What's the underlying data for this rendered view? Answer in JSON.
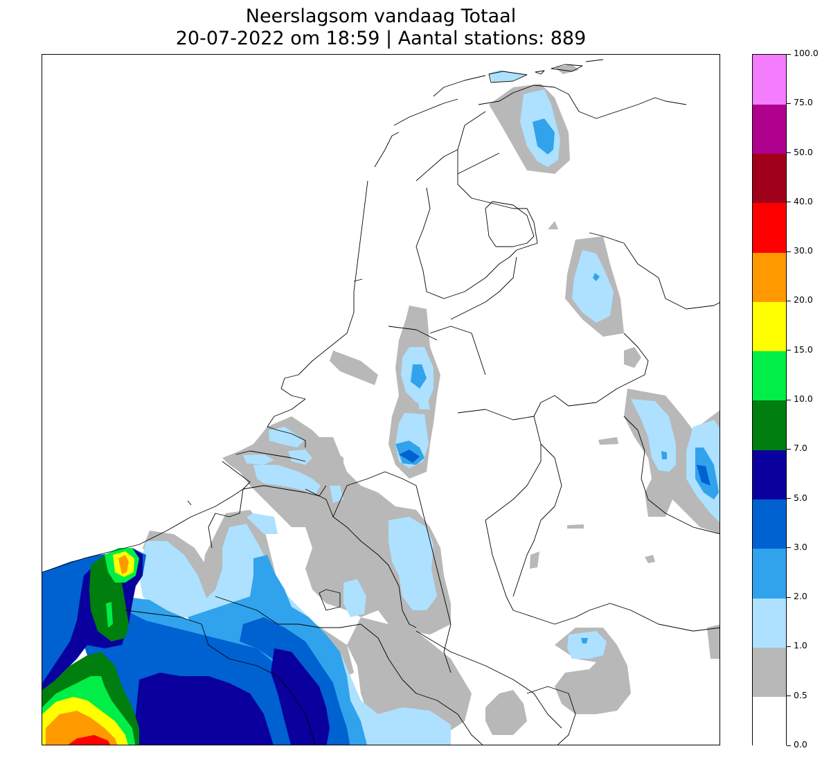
{
  "title": {
    "line1": "Neerslagsom vandaag Totaal",
    "line2": "20-07-2022 om 18:59 | Aantal stations: 889"
  },
  "legend": {
    "ticks": [
      "0.0",
      "0.5",
      "1.0",
      "2.0",
      "3.0",
      "5.0",
      "7.0",
      "10.0",
      "15.0",
      "20.0",
      "30.0",
      "40.0",
      "50.0",
      "75.0",
      "100.0"
    ],
    "colors": [
      "#ffffff",
      "#b8b8b8",
      "#ade1ff",
      "#31a2ec",
      "#0061d1",
      "#0a009e",
      "#007e0e",
      "#00ee47",
      "#ffff00",
      "#ff9900",
      "#ff0000",
      "#a0001a",
      "#b0008e",
      "#f47cff"
    ]
  },
  "colors": {
    "border": "#000000",
    "background": "#ffffff"
  }
}
